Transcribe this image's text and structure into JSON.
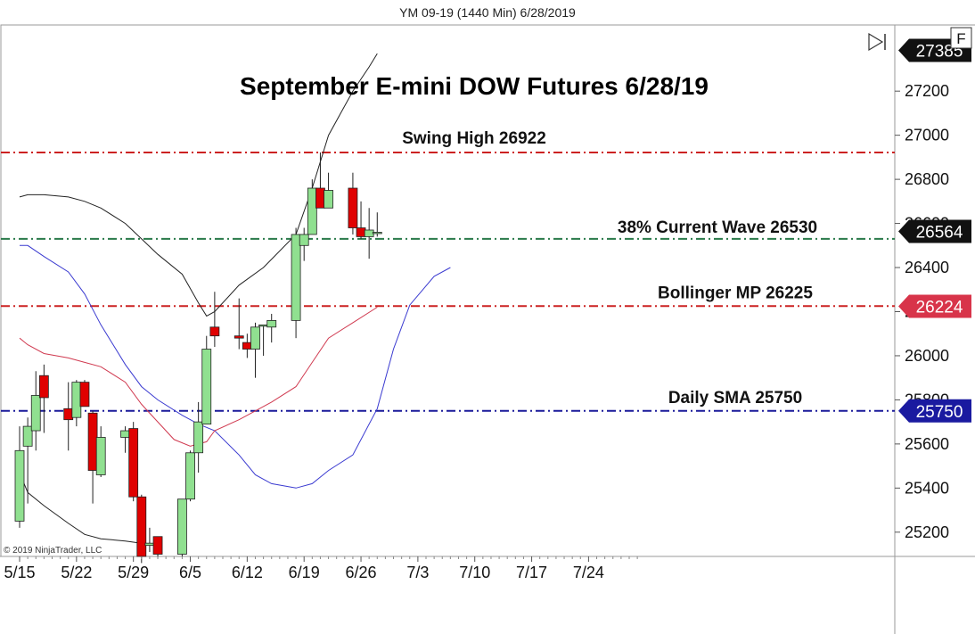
{
  "header": {
    "instrument": "YM 09-19 (1440 Min)  6/28/2019"
  },
  "toolbar": {
    "f_label": "F"
  },
  "copyright": "© 2019 NinjaTrader, LLC",
  "chart_data": {
    "type": "candlestick",
    "title": "September E-mini DOW Futures 6/28/19",
    "ylim": [
      25090,
      27500
    ],
    "y_ticks": [
      25200,
      25400,
      25600,
      25800,
      26000,
      26200,
      26400,
      26600,
      26800,
      27000,
      27200
    ],
    "x_ticks": [
      {
        "label": "5/15",
        "day": 0
      },
      {
        "label": "5/22",
        "day": 7
      },
      {
        "label": "5/29",
        "day": 14
      },
      {
        "label": "6/5",
        "day": 21
      },
      {
        "label": "6/12",
        "day": 28
      },
      {
        "label": "6/19",
        "day": 35
      },
      {
        "label": "6/26",
        "day": 42
      },
      {
        "label": "7/3",
        "day": 49
      },
      {
        "label": "7/10",
        "day": 56
      },
      {
        "label": "7/17",
        "day": 63
      },
      {
        "label": "7/24",
        "day": 70
      }
    ],
    "colors": {
      "up": "#90e090",
      "down": "#e00000",
      "upper_band": "#222222",
      "lower_band": "#3a3ad0",
      "midline": "#d03a50"
    },
    "candles": [
      {
        "day": 0,
        "o": 25250,
        "h": 25680,
        "l": 25220,
        "c": 25570
      },
      {
        "day": 1,
        "o": 25590,
        "h": 25720,
        "l": 25330,
        "c": 25680
      },
      {
        "day": 2,
        "o": 25660,
        "h": 25930,
        "l": 25570,
        "c": 25820
      },
      {
        "day": 3,
        "o": 25910,
        "h": 25960,
        "l": 25650,
        "c": 25810
      },
      {
        "day": 6,
        "o": 25760,
        "h": 25880,
        "l": 25570,
        "c": 25710
      },
      {
        "day": 7,
        "o": 25720,
        "h": 25890,
        "l": 25680,
        "c": 25880
      },
      {
        "day": 8,
        "o": 25880,
        "h": 25890,
        "l": 25770,
        "c": 25770
      },
      {
        "day": 9,
        "o": 25740,
        "h": 25750,
        "l": 25330,
        "c": 25480
      },
      {
        "day": 10,
        "o": 25460,
        "h": 25680,
        "l": 25450,
        "c": 25630
      },
      {
        "day": 13,
        "o": 25630,
        "h": 25680,
        "l": 25560,
        "c": 25660
      },
      {
        "day": 14,
        "o": 25670,
        "h": 25700,
        "l": 25340,
        "c": 25360
      },
      {
        "day": 15,
        "o": 25360,
        "h": 25370,
        "l": 25060,
        "c": 25090
      },
      {
        "day": 16,
        "o": 25140,
        "h": 25220,
        "l": 25110,
        "c": 25150
      },
      {
        "day": 17,
        "o": 25180,
        "h": 25180,
        "l": 25080,
        "c": 25100
      },
      {
        "day": 20,
        "o": 25100,
        "h": 25350,
        "l": 25090,
        "c": 25350
      },
      {
        "day": 21,
        "o": 25350,
        "h": 25570,
        "l": 25340,
        "c": 25560
      },
      {
        "day": 22,
        "o": 25560,
        "h": 25790,
        "l": 25470,
        "c": 25700
      },
      {
        "day": 23,
        "o": 25690,
        "h": 26090,
        "l": 25690,
        "c": 26030
      },
      {
        "day": 24,
        "o": 26130,
        "h": 26290,
        "l": 26040,
        "c": 26090
      },
      {
        "day": 27,
        "o": 26090,
        "h": 26260,
        "l": 26030,
        "c": 26080
      },
      {
        "day": 28,
        "o": 26060,
        "h": 26100,
        "l": 25990,
        "c": 26030
      },
      {
        "day": 29,
        "o": 26030,
        "h": 26150,
        "l": 25900,
        "c": 26130
      },
      {
        "day": 30,
        "o": 26140,
        "h": 26140,
        "l": 26000,
        "c": 26140
      },
      {
        "day": 31,
        "o": 26130,
        "h": 26190,
        "l": 26060,
        "c": 26160
      },
      {
        "day": 34,
        "o": 26160,
        "h": 26580,
        "l": 26080,
        "c": 26550
      },
      {
        "day": 35,
        "o": 26500,
        "h": 26580,
        "l": 26430,
        "c": 26550
      },
      {
        "day": 36,
        "o": 26550,
        "h": 26800,
        "l": 26550,
        "c": 26760
      },
      {
        "day": 37,
        "o": 26760,
        "h": 26922,
        "l": 26670,
        "c": 26670
      },
      {
        "day": 38,
        "o": 26670,
        "h": 26830,
        "l": 26670,
        "c": 26750
      },
      {
        "day": 41,
        "o": 26760,
        "h": 26830,
        "l": 26550,
        "c": 26580
      },
      {
        "day": 42,
        "o": 26580,
        "h": 26700,
        "l": 26530,
        "c": 26540
      },
      {
        "day": 43,
        "o": 26540,
        "h": 26670,
        "l": 26440,
        "c": 26570
      },
      {
        "day": 44,
        "o": 26560,
        "h": 26650,
        "l": 26540,
        "c": 26560
      }
    ],
    "upper_band": [
      {
        "day": 0,
        "v": 26720
      },
      {
        "day": 1,
        "v": 26730
      },
      {
        "day": 3,
        "v": 26730
      },
      {
        "day": 6,
        "v": 26720
      },
      {
        "day": 8,
        "v": 26700
      },
      {
        "day": 10,
        "v": 26670
      },
      {
        "day": 13,
        "v": 26600
      },
      {
        "day": 15,
        "v": 26530
      },
      {
        "day": 17,
        "v": 26460
      },
      {
        "day": 20,
        "v": 26370
      },
      {
        "day": 22,
        "v": 26240
      },
      {
        "day": 23,
        "v": 26180
      },
      {
        "day": 24,
        "v": 26200
      },
      {
        "day": 27,
        "v": 26320
      },
      {
        "day": 30,
        "v": 26400
      },
      {
        "day": 34,
        "v": 26550
      },
      {
        "day": 36,
        "v": 26760
      },
      {
        "day": 38,
        "v": 27000
      },
      {
        "day": 41,
        "v": 27200
      },
      {
        "day": 43,
        "v": 27310
      },
      {
        "day": 44,
        "v": 27370
      }
    ],
    "lower_band": [
      {
        "day": 0,
        "v": 26500
      },
      {
        "day": 1,
        "v": 26500
      },
      {
        "day": 3,
        "v": 26450
      },
      {
        "day": 6,
        "v": 26380
      },
      {
        "day": 8,
        "v": 26280
      },
      {
        "day": 10,
        "v": 26140
      },
      {
        "day": 13,
        "v": 25960
      },
      {
        "day": 15,
        "v": 25860
      },
      {
        "day": 17,
        "v": 25800
      },
      {
        "day": 20,
        "v": 25730
      },
      {
        "day": 22,
        "v": 25690
      },
      {
        "day": 24,
        "v": 25660
      },
      {
        "day": 27,
        "v": 25550
      },
      {
        "day": 29,
        "v": 25460
      },
      {
        "day": 31,
        "v": 25420
      },
      {
        "day": 34,
        "v": 25400
      },
      {
        "day": 36,
        "v": 25420
      },
      {
        "day": 38,
        "v": 25480
      },
      {
        "day": 41,
        "v": 25550
      },
      {
        "day": 44,
        "v": 25760
      },
      {
        "day": 46,
        "v": 26030
      },
      {
        "day": 48,
        "v": 26230
      },
      {
        "day": 51,
        "v": 26360
      },
      {
        "day": 53,
        "v": 26400
      }
    ],
    "lower_band_2": [
      {
        "day": 0,
        "v": 25470
      },
      {
        "day": 1,
        "v": 25380
      },
      {
        "day": 3,
        "v": 25320
      },
      {
        "day": 6,
        "v": 25240
      },
      {
        "day": 8,
        "v": 25190
      },
      {
        "day": 10,
        "v": 25170
      },
      {
        "day": 13,
        "v": 25160
      },
      {
        "day": 15,
        "v": 25150
      }
    ],
    "midline": [
      {
        "day": 0,
        "v": 26080
      },
      {
        "day": 1,
        "v": 26050
      },
      {
        "day": 3,
        "v": 26010
      },
      {
        "day": 6,
        "v": 25990
      },
      {
        "day": 8,
        "v": 25970
      },
      {
        "day": 10,
        "v": 25950
      },
      {
        "day": 13,
        "v": 25880
      },
      {
        "day": 15,
        "v": 25780
      },
      {
        "day": 17,
        "v": 25700
      },
      {
        "day": 19,
        "v": 25620
      },
      {
        "day": 21,
        "v": 25590
      },
      {
        "day": 23,
        "v": 25610
      },
      {
        "day": 24,
        "v": 25660
      },
      {
        "day": 27,
        "v": 25710
      },
      {
        "day": 29,
        "v": 25750
      },
      {
        "day": 31,
        "v": 25790
      },
      {
        "day": 34,
        "v": 25860
      },
      {
        "day": 36,
        "v": 25970
      },
      {
        "day": 38,
        "v": 26080
      },
      {
        "day": 41,
        "v": 26150
      },
      {
        "day": 44,
        "v": 26220
      }
    ],
    "levels": [
      {
        "label": "Swing High 26922",
        "value": 26922,
        "color": "#cc2222",
        "badge": null
      },
      {
        "label": "38% Current Wave 26530",
        "value": 26530,
        "color": "#2a7a4a",
        "badge": null
      },
      {
        "label": "Bollinger MP 26225",
        "value": 26225,
        "color": "#cc2222",
        "badge": "26224"
      },
      {
        "label": "Daily SMA 25750",
        "value": 25750,
        "color": "#1a1a9a",
        "badge": "25750"
      }
    ],
    "badges": [
      {
        "text": "27385",
        "value": 27385,
        "color": "#111111"
      },
      {
        "text": "26564",
        "value": 26564,
        "color": "#111111"
      },
      {
        "text": "26224",
        "value": 26224,
        "color": "#d8344a"
      },
      {
        "text": "25750",
        "value": 25750,
        "color": "#1a1aa0"
      }
    ]
  }
}
